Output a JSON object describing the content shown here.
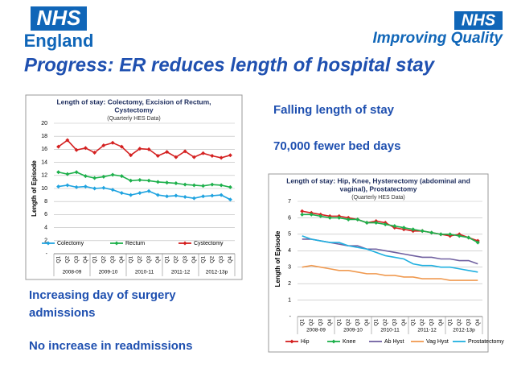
{
  "logos": {
    "left": {
      "badge": "NHS",
      "name": "England"
    },
    "right": {
      "badge": "NHS",
      "name": "Improving Quality"
    }
  },
  "headline": "Progress:  ER reduces length of hospital stay",
  "points": [
    "Falling length of stay",
    "70,000 fewer bed days"
  ],
  "notes": [
    [
      "Increasing day of surgery",
      "admissions"
    ],
    [
      "No increase in readmissions"
    ]
  ],
  "chart_data": [
    {
      "type": "line",
      "title": [
        "Length of stay: Colectomy, Excision of Rectum,",
        "Cystectomy"
      ],
      "subtitle": "(Quarterly HES Data)",
      "y_label": "Length of Episode",
      "categories": [
        "Q1",
        "Q2",
        "Q3",
        "Q4",
        "Q1",
        "Q2",
        "Q3",
        "Q4",
        "Q1",
        "Q2",
        "Q3",
        "Q4",
        "Q1",
        "Q2",
        "Q3",
        "Q4",
        "Q1",
        "Q2",
        "Q3",
        "Q4"
      ],
      "groups": [
        "2008-09",
        "2009-10",
        "2010-11",
        "2011-12",
        "2012-13p"
      ],
      "ylim": [
        0,
        20
      ],
      "yticks": [
        {
          "value": 0,
          "label": "-"
        },
        2,
        4,
        6,
        8,
        10,
        12,
        14,
        16,
        18,
        20
      ],
      "grid": true,
      "series": [
        {
          "name": "Colectomy",
          "color": "#1fa3e0",
          "marker": true,
          "values": [
            10.3,
            10.5,
            10.2,
            10.3,
            10.0,
            10.1,
            9.8,
            9.3,
            9.0,
            9.3,
            9.6,
            9.0,
            8.8,
            8.9,
            8.7,
            8.5,
            8.8,
            8.9,
            9.0,
            8.3
          ]
        },
        {
          "name": "Rectum",
          "color": "#1db04b",
          "marker": true,
          "values": [
            12.5,
            12.2,
            12.5,
            11.9,
            11.6,
            11.8,
            12.1,
            11.9,
            11.2,
            11.3,
            11.2,
            11.0,
            10.9,
            10.8,
            10.6,
            10.5,
            10.4,
            10.6,
            10.5,
            10.2
          ]
        },
        {
          "name": "Cystectomy",
          "color": "#d42020",
          "marker": true,
          "values": [
            16.4,
            17.4,
            15.9,
            16.2,
            15.5,
            16.6,
            17.0,
            16.4,
            15.1,
            16.1,
            16.0,
            15.0,
            15.6,
            14.8,
            15.7,
            14.8,
            15.4,
            15.0,
            14.7,
            15.1
          ]
        }
      ]
    },
    {
      "type": "line",
      "title": [
        "Length of stay: Hip, Knee, Hysterectomy (abdominal and",
        "vaginal), Prostatectomy"
      ],
      "subtitle": "(Quarterly HES Data)",
      "y_label": "Length of Episode",
      "categories": [
        "Q1",
        "Q2",
        "Q3",
        "Q4",
        "Q1",
        "Q2",
        "Q3",
        "Q4",
        "Q1",
        "Q2",
        "Q3",
        "Q4",
        "Q1",
        "Q2",
        "Q3",
        "Q4",
        "Q1",
        "Q2",
        "Q3",
        "Q4"
      ],
      "groups": [
        "2008-09",
        "2009-10",
        "2010-11",
        "2011-12",
        "2012-13p"
      ],
      "ylim": [
        0,
        7
      ],
      "yticks": [
        {
          "value": 0,
          "label": "-"
        },
        1,
        2,
        3,
        4,
        5,
        6,
        7
      ],
      "grid": true,
      "series": [
        {
          "name": "Hip",
          "color": "#d42020",
          "marker": true,
          "values": [
            6.4,
            6.3,
            6.2,
            6.1,
            6.1,
            6.0,
            5.9,
            5.7,
            5.8,
            5.7,
            5.4,
            5.3,
            5.2,
            5.2,
            5.1,
            5.0,
            4.9,
            5.0,
            4.8,
            4.6
          ]
        },
        {
          "name": "Knee",
          "color": "#1db04b",
          "marker": true,
          "values": [
            6.2,
            6.2,
            6.1,
            6.0,
            6.0,
            5.9,
            5.9,
            5.7,
            5.7,
            5.6,
            5.5,
            5.4,
            5.3,
            5.2,
            5.1,
            5.0,
            5.0,
            4.9,
            4.8,
            4.5
          ]
        },
        {
          "name": "Ab Hyst",
          "color": "#7060a0",
          "marker": false,
          "values": [
            4.7,
            4.7,
            4.6,
            4.5,
            4.4,
            4.3,
            4.3,
            4.1,
            4.1,
            4.0,
            3.9,
            3.8,
            3.7,
            3.6,
            3.6,
            3.5,
            3.5,
            3.4,
            3.4,
            3.2
          ]
        },
        {
          "name": "Vag Hyst",
          "color": "#f09a50",
          "marker": false,
          "values": [
            3.0,
            3.1,
            3.0,
            2.9,
            2.8,
            2.8,
            2.7,
            2.6,
            2.6,
            2.5,
            2.5,
            2.4,
            2.4,
            2.3,
            2.3,
            2.3,
            2.2,
            2.2,
            2.2,
            2.2
          ]
        },
        {
          "name": "Prostatectomy",
          "color": "#20b0e0",
          "marker": false,
          "values": [
            4.9,
            4.7,
            4.6,
            4.5,
            4.5,
            4.3,
            4.2,
            4.1,
            3.9,
            3.7,
            3.6,
            3.5,
            3.2,
            3.1,
            3.1,
            3.0,
            3.0,
            2.9,
            2.8,
            2.7
          ]
        }
      ]
    }
  ]
}
